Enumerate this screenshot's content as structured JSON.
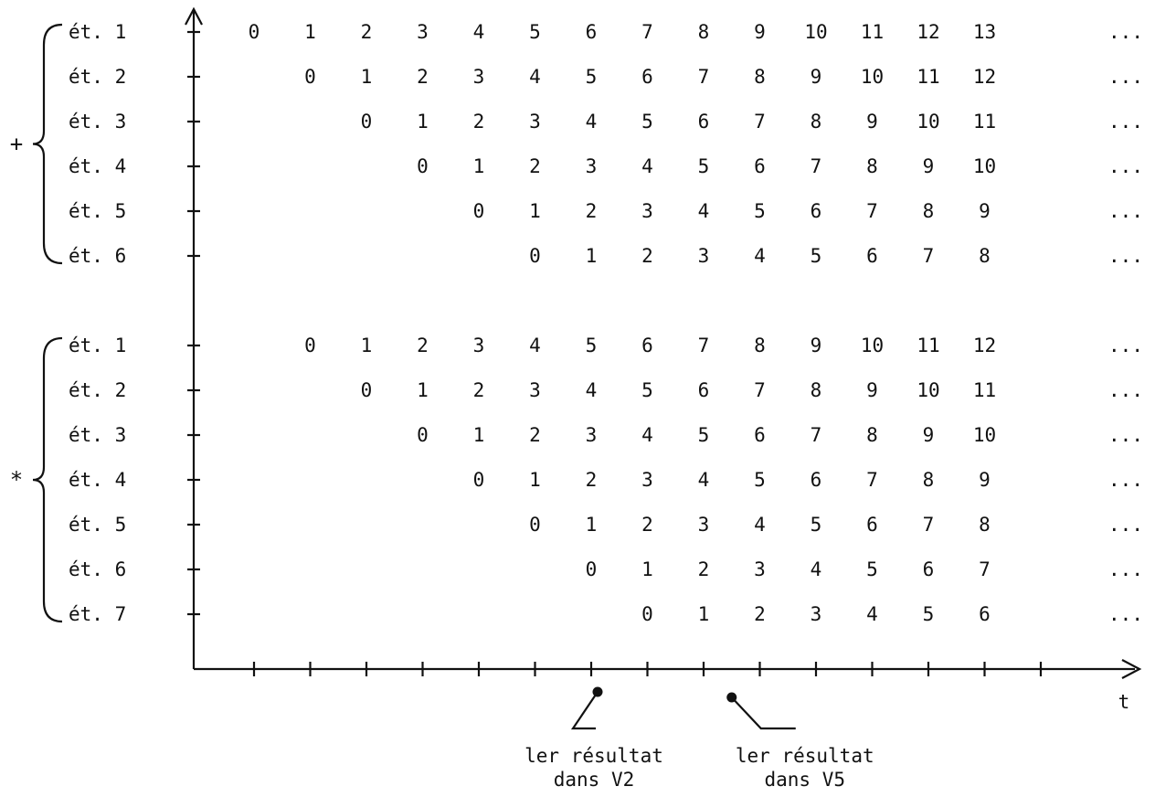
{
  "groups": [
    {
      "symbol": "+",
      "rows": [
        {
          "label": "ét. 1",
          "start": 0,
          "values": [
            "0",
            "1",
            "2",
            "3",
            "4",
            "5",
            "6",
            "7",
            "8",
            "9",
            "10",
            "11",
            "12",
            "13"
          ]
        },
        {
          "label": "ét. 2",
          "start": 1,
          "values": [
            "0",
            "1",
            "2",
            "3",
            "4",
            "5",
            "6",
            "7",
            "8",
            "9",
            "10",
            "11",
            "12"
          ]
        },
        {
          "label": "ét. 3",
          "start": 2,
          "values": [
            "0",
            "1",
            "2",
            "3",
            "4",
            "5",
            "6",
            "7",
            "8",
            "9",
            "10",
            "11"
          ]
        },
        {
          "label": "ét. 4",
          "start": 3,
          "values": [
            "0",
            "1",
            "2",
            "3",
            "4",
            "5",
            "6",
            "7",
            "8",
            "9",
            "10"
          ]
        },
        {
          "label": "ét. 5",
          "start": 4,
          "values": [
            "0",
            "1",
            "2",
            "3",
            "4",
            "5",
            "6",
            "7",
            "8",
            "9"
          ]
        },
        {
          "label": "ét. 6",
          "start": 5,
          "values": [
            "0",
            "1",
            "2",
            "3",
            "4",
            "5",
            "6",
            "7",
            "8"
          ]
        }
      ]
    },
    {
      "symbol": "*",
      "rows": [
        {
          "label": "ét. 1",
          "start": 1,
          "values": [
            "0",
            "1",
            "2",
            "3",
            "4",
            "5",
            "6",
            "7",
            "8",
            "9",
            "10",
            "11",
            "12"
          ]
        },
        {
          "label": "ét. 2",
          "start": 2,
          "values": [
            "0",
            "1",
            "2",
            "3",
            "4",
            "5",
            "6",
            "7",
            "8",
            "9",
            "10",
            "11"
          ]
        },
        {
          "label": "ét. 3",
          "start": 3,
          "values": [
            "0",
            "1",
            "2",
            "3",
            "4",
            "5",
            "6",
            "7",
            "8",
            "9",
            "10"
          ]
        },
        {
          "label": "ét. 4",
          "start": 4,
          "values": [
            "0",
            "1",
            "2",
            "3",
            "4",
            "5",
            "6",
            "7",
            "8",
            "9"
          ]
        },
        {
          "label": "ét. 5",
          "start": 5,
          "values": [
            "0",
            "1",
            "2",
            "3",
            "4",
            "5",
            "6",
            "7",
            "8"
          ]
        },
        {
          "label": "ét. 6",
          "start": 6,
          "values": [
            "0",
            "1",
            "2",
            "3",
            "4",
            "5",
            "6",
            "7"
          ]
        },
        {
          "label": "ét. 7",
          "start": 7,
          "values": [
            "0",
            "1",
            "2",
            "3",
            "4",
            "5",
            "6"
          ]
        }
      ]
    }
  ],
  "ellipsis": "...",
  "x_axis_label": "t",
  "x_axis_tick_count": 15,
  "annotations": [
    {
      "tick": 6,
      "lines": [
        "ler résultat",
        "dans V2"
      ]
    },
    {
      "tick": 8.5,
      "lines": [
        "ler résultat",
        "dans V5"
      ]
    }
  ]
}
